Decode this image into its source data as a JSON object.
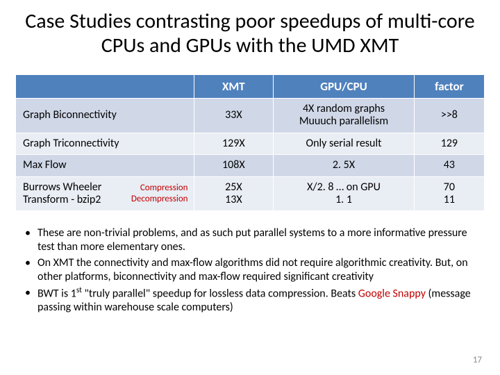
{
  "title": "Case Studies contrasting poor speedups of multi-core CPUs and GPUs with the UMD XMT",
  "table": {
    "columns": [
      "",
      "XMT",
      "GPU/CPU",
      "factor"
    ],
    "col_widths_pct": [
      38,
      17,
      30,
      15
    ],
    "header_bg": "#4f81bd",
    "header_fg": "#ffffff",
    "row_bg_odd": "#d0d8e8",
    "row_bg_even": "#e9edf4",
    "border_color": "#ffffff",
    "rows": [
      {
        "label": "Graph Biconnectivity",
        "xmt": "33X",
        "gpucpu": "4X random graphs\nMuuuch parallelism",
        "factor": ">>8"
      },
      {
        "label": "Graph Triconnectivity",
        "xmt": "129X",
        "gpucpu": "Only serial result",
        "factor": "129"
      },
      {
        "label": "Max Flow",
        "xmt": "108X",
        "gpucpu": "2. 5X",
        "factor": "43"
      },
      {
        "bwt_left": "Burrows Wheeler\nTransform - bzip2",
        "bwt_right": "Compression\nDecompression",
        "xmt": "25X\n13X",
        "gpucpu": "X/2. 8 … on GPU\n1. 1",
        "factor": "70\n11"
      }
    ]
  },
  "bullets": {
    "b1_a": "These are non-trivial problems, and as such put parallel systems to a more informative pressure test than more elementary ones.",
    "b2": "On XMT the connectivity and max-flow algorithms did not require algorithmic creativity. But, on other platforms, biconnectivity and max-flow required significant creativity",
    "b3_a": "BWT is 1",
    "b3_sup": "st",
    "b3_b": " \"truly parallel\" speedup for lossless data compression. Beats ",
    "b3_snappy": "Google Snappy",
    "b3_c": " (message passing within warehouse scale computers)"
  },
  "accent_red": "#c00000",
  "page_number": "17"
}
